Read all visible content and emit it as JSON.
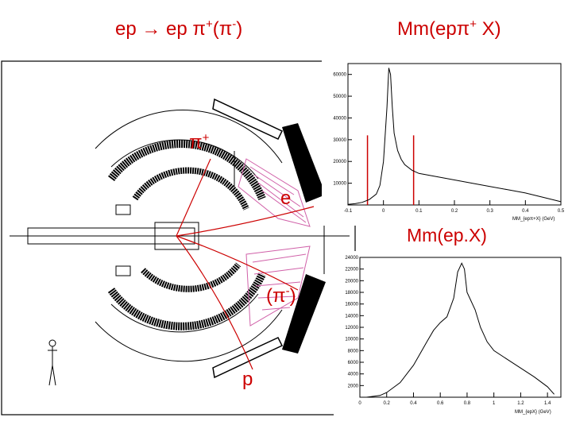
{
  "titles": {
    "left_main": "ep → ep π",
    "left_sup1": "+",
    "left_paren_open": "(π",
    "left_sup2": "-",
    "left_paren_close": ")",
    "right_main": "Mm(epπ",
    "right_sup": "+",
    "right_end": " X)",
    "middle": "Mm(ep.X)"
  },
  "detector_labels": {
    "pi_plus": "π",
    "pi_plus_sup": "+",
    "electron": "e",
    "pi_minus_open": "(π",
    "pi_minus_sup": "-",
    "pi_minus_close": ")",
    "proton": "p"
  },
  "colors": {
    "title_red": "#cc0000",
    "track_red": "#cc0000",
    "calorimeter_pink": "#d060a8",
    "data_line": "#000000"
  },
  "chart_data": [
    {
      "type": "line",
      "name": "missing-mass-ep-piplus",
      "title": "Mm(epπ+ X)",
      "xlabel": "MM_{epπ+X} (GeV)",
      "ylabel": "",
      "xlim": [
        -0.1,
        0.5
      ],
      "ylim": [
        0,
        65000
      ],
      "xticks": [
        -0.1,
        0,
        0.1,
        0.2,
        0.3,
        0.4,
        0.5
      ],
      "xtick_labels": [
        "-0.1",
        "0",
        "0.1",
        "0.2",
        "0.3",
        "0.4",
        "0.5"
      ],
      "yticks": [
        10000,
        20000,
        30000,
        40000,
        50000,
        60000
      ],
      "ytick_labels": [
        "10000",
        "20000",
        "30000",
        "40000",
        "50000",
        "60000"
      ],
      "cut_lines_x": [
        -0.045,
        0.085
      ],
      "x": [
        -0.1,
        -0.08,
        -0.06,
        -0.04,
        -0.02,
        -0.01,
        0.0,
        0.01,
        0.015,
        0.02,
        0.025,
        0.03,
        0.04,
        0.05,
        0.06,
        0.08,
        0.1,
        0.15,
        0.2,
        0.25,
        0.3,
        0.35,
        0.4,
        0.45,
        0.5
      ],
      "y": [
        300,
        600,
        1200,
        2500,
        5000,
        9000,
        20000,
        45000,
        63000,
        60000,
        45000,
        33000,
        25000,
        21000,
        18500,
        16000,
        14500,
        13000,
        11500,
        10000,
        8500,
        7000,
        5500,
        3500,
        1500
      ]
    },
    {
      "type": "line",
      "name": "missing-mass-ep",
      "title": "Mm(ep.X)",
      "xlabel": "MM_{epX} (GeV)",
      "ylabel": "",
      "xlim": [
        0,
        1.5
      ],
      "ylim": [
        0,
        24000
      ],
      "xticks": [
        0,
        0.2,
        0.4,
        0.6,
        0.8,
        1,
        1.2,
        1.4
      ],
      "xtick_labels": [
        "0",
        "0.2",
        "0.4",
        "0.6",
        "0.8",
        "1",
        "1.2",
        "1.4"
      ],
      "yticks": [
        2000,
        4000,
        6000,
        8000,
        10000,
        12000,
        14000,
        16000,
        18000,
        20000,
        22000,
        24000
      ],
      "ytick_labels": [
        "2000",
        "4000",
        "6000",
        "8000",
        "10000",
        "12000",
        "14000",
        "16000",
        "18000",
        "20000",
        "22000",
        "24000"
      ],
      "x": [
        0.05,
        0.15,
        0.2,
        0.3,
        0.4,
        0.45,
        0.5,
        0.55,
        0.6,
        0.65,
        0.7,
        0.73,
        0.76,
        0.78,
        0.8,
        0.83,
        0.86,
        0.9,
        0.95,
        1.0,
        1.1,
        1.2,
        1.3,
        1.4,
        1.45
      ],
      "y": [
        0,
        300,
        800,
        2500,
        5500,
        7500,
        9500,
        11500,
        12800,
        13800,
        17000,
        21500,
        23000,
        22000,
        18000,
        16500,
        15000,
        12000,
        9500,
        8000,
        6500,
        5000,
        3500,
        1800,
        500
      ]
    }
  ]
}
